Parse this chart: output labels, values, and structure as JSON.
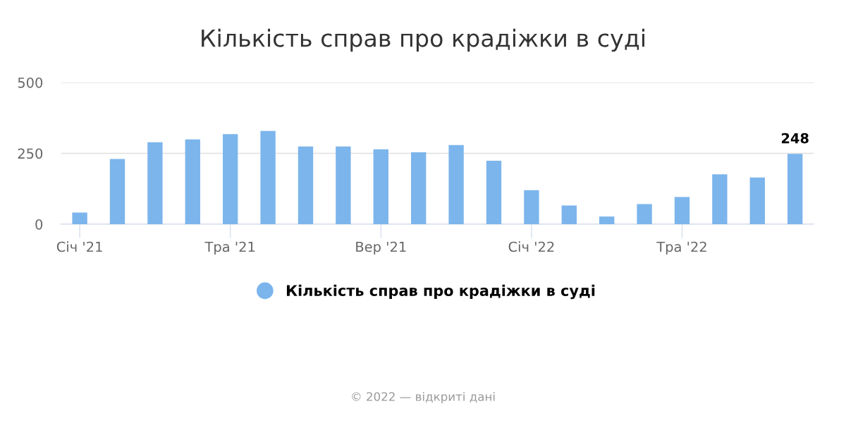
{
  "chart_data": {
    "type": "bar",
    "title": "Кількість справ про крадіжки в суді",
    "categories": [
      "Січ '21",
      null,
      null,
      null,
      "Тра '21",
      null,
      null,
      null,
      "Вер '21",
      null,
      null,
      null,
      "Січ '22",
      null,
      null,
      null,
      "Тра '22",
      null,
      null,
      null
    ],
    "series": [
      {
        "name": "Кількість справ про крадіжки в суді",
        "color": "#7cb5ec",
        "values": [
          41,
          230,
          289,
          299,
          318,
          329,
          274,
          274,
          264,
          254,
          279,
          224,
          120,
          66,
          27,
          71,
          96,
          176,
          165,
          248
        ],
        "value_labels": [
          null,
          null,
          null,
          null,
          null,
          null,
          null,
          null,
          null,
          null,
          null,
          null,
          null,
          null,
          null,
          null,
          null,
          null,
          null,
          "248"
        ]
      }
    ],
    "ylim": [
      0,
      500
    ],
    "yticks": [
      0,
      250,
      500
    ],
    "grid": "y",
    "legend": "bottom",
    "annotations": [
      "© 2022 — відкриті дані"
    ]
  }
}
